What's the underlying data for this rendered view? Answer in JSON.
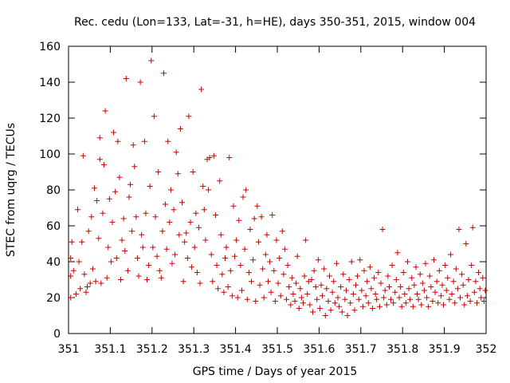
{
  "chart_data": {
    "type": "scatter",
    "title": "Rec. cedu (Lon=133, Lat=-31, h=HE), days 350-351, 2015, window 004",
    "xlabel": "GPS time / Days of year 2015",
    "ylabel": "STEC from uqrg / TECUs",
    "xlim": [
      351,
      352
    ],
    "ylim": [
      0,
      160
    ],
    "x_ticks": [
      "351",
      "351.1",
      "351.2",
      "351.3",
      "351.4",
      "351.5",
      "351.6",
      "351.7",
      "351.8",
      "351.9",
      "352"
    ],
    "y_ticks": [
      "0",
      "20",
      "40",
      "60",
      "80",
      "100",
      "120",
      "140",
      "160"
    ],
    "grid": false,
    "marker": "+",
    "marker_color": "#cc0000",
    "series": [
      {
        "points": [
          [
            351.005,
            20
          ],
          [
            351.005,
            32
          ],
          [
            351.005,
            42
          ],
          [
            351.008,
            51
          ],
          [
            351.012,
            35
          ],
          [
            351.018,
            22
          ],
          [
            351.022,
            69
          ],
          [
            351.025,
            40
          ],
          [
            351.028,
            25
          ],
          [
            351.032,
            51
          ],
          [
            351.035,
            99
          ],
          [
            351.038,
            33
          ],
          [
            351.042,
            23
          ],
          [
            351.045,
            26
          ],
          [
            351.048,
            57
          ],
          [
            351.052,
            28
          ],
          [
            351.055,
            65
          ],
          [
            351.058,
            36
          ],
          [
            351.062,
            81
          ],
          [
            351.065,
            29
          ],
          [
            351.068,
            74
          ],
          [
            351.072,
            53
          ],
          [
            351.075,
            109
          ],
          [
            351.075,
            97
          ],
          [
            351.078,
            28
          ],
          [
            351.082,
            67
          ],
          [
            351.085,
            94
          ],
          [
            351.088,
            124
          ],
          [
            351.092,
            31
          ],
          [
            351.095,
            48
          ],
          [
            351.098,
            75
          ],
          [
            351.102,
            40
          ],
          [
            351.105,
            62
          ],
          [
            351.108,
            112
          ],
          [
            351.112,
            79
          ],
          [
            351.115,
            42
          ],
          [
            351.118,
            107
          ],
          [
            351.122,
            87
          ],
          [
            351.125,
            30
          ],
          [
            351.128,
            52
          ],
          [
            351.132,
            64
          ],
          [
            351.135,
            46
          ],
          [
            351.138,
            142
          ],
          [
            351.142,
            35
          ],
          [
            351.145,
            76
          ],
          [
            351.148,
            83
          ],
          [
            351.152,
            57
          ],
          [
            351.155,
            105
          ],
          [
            351.158,
            93
          ],
          [
            351.162,
            65
          ],
          [
            351.165,
            42
          ],
          [
            351.168,
            32
          ],
          [
            351.172,
            140
          ],
          [
            351.175,
            55
          ],
          [
            351.178,
            48
          ],
          [
            351.182,
            107
          ],
          [
            351.185,
            67
          ],
          [
            351.188,
            30
          ],
          [
            351.192,
            38
          ],
          [
            351.195,
            82
          ],
          [
            351.198,
            152
          ],
          [
            351.202,
            48
          ],
          [
            351.205,
            121
          ],
          [
            351.208,
            65
          ],
          [
            351.212,
            43
          ],
          [
            351.215,
            90
          ],
          [
            351.218,
            35
          ],
          [
            351.222,
            31
          ],
          [
            351.225,
            57
          ],
          [
            351.228,
            145
          ],
          [
            351.232,
            72
          ],
          [
            351.235,
            47
          ],
          [
            351.238,
            107
          ],
          [
            351.242,
            62
          ],
          [
            351.245,
            80
          ],
          [
            351.248,
            39
          ],
          [
            351.252,
            69
          ],
          [
            351.255,
            44
          ],
          [
            351.258,
            101
          ],
          [
            351.262,
            89
          ],
          [
            351.265,
            55
          ],
          [
            351.268,
            114
          ],
          [
            351.272,
            73
          ],
          [
            351.275,
            29
          ],
          [
            351.278,
            51
          ],
          [
            351.282,
            56
          ],
          [
            351.285,
            42
          ],
          [
            351.288,
            121
          ],
          [
            351.292,
            62
          ],
          [
            351.295,
            37
          ],
          [
            351.298,
            90
          ],
          [
            351.302,
            48
          ],
          [
            351.305,
            67
          ],
          [
            351.308,
            34
          ],
          [
            351.312,
            59
          ],
          [
            351.315,
            28
          ],
          [
            351.318,
            136
          ],
          [
            351.322,
            82
          ],
          [
            351.325,
            69
          ],
          [
            351.328,
            52
          ],
          [
            351.332,
            97
          ],
          [
            351.335,
            80
          ],
          [
            351.338,
            98
          ],
          [
            351.342,
            44
          ],
          [
            351.345,
            29
          ],
          [
            351.348,
            99
          ],
          [
            351.352,
            66
          ],
          [
            351.355,
            38
          ],
          [
            351.358,
            25
          ],
          [
            351.362,
            85
          ],
          [
            351.365,
            55
          ],
          [
            351.368,
            33
          ],
          [
            351.372,
            23
          ],
          [
            351.375,
            42
          ],
          [
            351.378,
            48
          ],
          [
            351.382,
            26
          ],
          [
            351.385,
            98
          ],
          [
            351.388,
            35
          ],
          [
            351.392,
            21
          ],
          [
            351.395,
            71
          ],
          [
            351.398,
            43
          ],
          [
            351.402,
            52
          ],
          [
            351.405,
            20
          ],
          [
            351.408,
            63
          ],
          [
            351.412,
            38
          ],
          [
            351.415,
            24
          ],
          [
            351.418,
            76
          ],
          [
            351.422,
            47
          ],
          [
            351.425,
            80
          ],
          [
            351.428,
            19
          ],
          [
            351.432,
            34
          ],
          [
            351.435,
            58
          ],
          [
            351.438,
            29
          ],
          [
            351.442,
            41
          ],
          [
            351.445,
            64
          ],
          [
            351.448,
            18
          ],
          [
            351.452,
            71
          ],
          [
            351.455,
            51
          ],
          [
            351.458,
            27
          ],
          [
            351.462,
            65
          ],
          [
            351.465,
            36
          ],
          [
            351.468,
            20
          ],
          [
            351.472,
            44
          ],
          [
            351.475,
            55
          ],
          [
            351.478,
            29
          ],
          [
            351.482,
            40
          ],
          [
            351.485,
            23
          ],
          [
            351.488,
            66
          ],
          [
            351.492,
            35
          ],
          [
            351.495,
            18
          ],
          [
            351.498,
            52
          ],
          [
            351.502,
            28
          ],
          [
            351.505,
            42
          ],
          [
            351.508,
            21
          ],
          [
            351.512,
            57
          ],
          [
            351.515,
            33
          ],
          [
            351.518,
            47
          ],
          [
            351.522,
            19
          ],
          [
            351.525,
            38
          ],
          [
            351.528,
            26
          ],
          [
            351.532,
            16
          ],
          [
            351.535,
            31
          ],
          [
            351.538,
            22
          ],
          [
            351.542,
            18
          ],
          [
            351.545,
            28
          ],
          [
            351.548,
            43
          ],
          [
            351.552,
            14
          ],
          [
            351.555,
            25
          ],
          [
            351.558,
            20
          ],
          [
            351.562,
            17
          ],
          [
            351.565,
            32
          ],
          [
            351.568,
            52
          ],
          [
            351.572,
            22
          ],
          [
            351.575,
            29
          ],
          [
            351.578,
            16
          ],
          [
            351.582,
            30
          ],
          [
            351.585,
            12
          ],
          [
            351.588,
            35
          ],
          [
            351.592,
            26
          ],
          [
            351.595,
            19
          ],
          [
            351.598,
            41
          ],
          [
            351.602,
            14
          ],
          [
            351.605,
            27
          ],
          [
            351.608,
            21
          ],
          [
            351.612,
            36
          ],
          [
            351.615,
            10
          ],
          [
            351.618,
            25
          ],
          [
            351.622,
            18
          ],
          [
            351.625,
            32
          ],
          [
            351.628,
            13
          ],
          [
            351.632,
            23
          ],
          [
            351.635,
            29
          ],
          [
            351.638,
            17
          ],
          [
            351.642,
            39
          ],
          [
            351.645,
            20
          ],
          [
            351.648,
            15
          ],
          [
            351.652,
            26
          ],
          [
            351.655,
            12
          ],
          [
            351.658,
            33
          ],
          [
            351.662,
            19
          ],
          [
            351.665,
            24
          ],
          [
            351.668,
            10
          ],
          [
            351.672,
            30
          ],
          [
            351.675,
            17
          ],
          [
            351.678,
            40
          ],
          [
            351.682,
            22
          ],
          [
            351.685,
            13
          ],
          [
            351.688,
            27
          ],
          [
            351.692,
            32
          ],
          [
            351.695,
            19
          ],
          [
            351.698,
            41
          ],
          [
            351.702,
            24
          ],
          [
            351.705,
            15
          ],
          [
            351.708,
            35
          ],
          [
            351.712,
            21
          ],
          [
            351.715,
            29
          ],
          [
            351.718,
            17
          ],
          [
            351.722,
            37
          ],
          [
            351.725,
            25
          ],
          [
            351.728,
            14
          ],
          [
            351.732,
            31
          ],
          [
            351.735,
            22
          ],
          [
            351.738,
            19
          ],
          [
            351.742,
            34
          ],
          [
            351.745,
            15
          ],
          [
            351.748,
            28
          ],
          [
            351.752,
            58
          ],
          [
            351.755,
            20
          ],
          [
            351.758,
            24
          ],
          [
            351.762,
            16
          ],
          [
            351.765,
            32
          ],
          [
            351.768,
            26
          ],
          [
            351.772,
            19
          ],
          [
            351.775,
            38
          ],
          [
            351.778,
            17
          ],
          [
            351.782,
            23
          ],
          [
            351.785,
            30
          ],
          [
            351.788,
            45
          ],
          [
            351.792,
            20
          ],
          [
            351.795,
            26
          ],
          [
            351.798,
            15
          ],
          [
            351.802,
            34
          ],
          [
            351.805,
            22
          ],
          [
            351.808,
            17
          ],
          [
            351.812,
            40
          ],
          [
            351.815,
            25
          ],
          [
            351.818,
            19
          ],
          [
            351.822,
            31
          ],
          [
            351.825,
            15
          ],
          [
            351.828,
            27
          ],
          [
            351.832,
            37
          ],
          [
            351.835,
            22
          ],
          [
            351.838,
            19
          ],
          [
            351.842,
            33
          ],
          [
            351.845,
            16
          ],
          [
            351.848,
            28
          ],
          [
            351.852,
            24
          ],
          [
            351.855,
            39
          ],
          [
            351.858,
            20
          ],
          [
            351.862,
            15
          ],
          [
            351.865,
            32
          ],
          [
            351.868,
            26
          ],
          [
            351.872,
            18
          ],
          [
            351.875,
            41
          ],
          [
            351.878,
            23
          ],
          [
            351.882,
            29
          ],
          [
            351.885,
            17
          ],
          [
            351.888,
            35
          ],
          [
            351.892,
            21
          ],
          [
            351.895,
            27
          ],
          [
            351.898,
            16
          ],
          [
            351.902,
            38
          ],
          [
            351.905,
            24
          ],
          [
            351.908,
            31
          ],
          [
            351.912,
            19
          ],
          [
            351.915,
            44
          ],
          [
            351.918,
            22
          ],
          [
            351.922,
            29
          ],
          [
            351.925,
            17
          ],
          [
            351.928,
            36
          ],
          [
            351.932,
            25
          ],
          [
            351.935,
            58
          ],
          [
            351.938,
            20
          ],
          [
            351.942,
            33
          ],
          [
            351.945,
            27
          ],
          [
            351.948,
            16
          ],
          [
            351.952,
            50
          ],
          [
            351.955,
            21
          ],
          [
            351.958,
            30
          ],
          [
            351.962,
            18
          ],
          [
            351.965,
            38
          ],
          [
            351.968,
            59
          ],
          [
            351.972,
            23
          ],
          [
            351.975,
            29
          ],
          [
            351.978,
            17
          ],
          [
            351.982,
            34
          ],
          [
            351.985,
            25
          ],
          [
            351.988,
            20
          ],
          [
            351.992,
            31
          ],
          [
            351.995,
            18
          ],
          [
            351.998,
            24
          ]
        ]
      }
    ]
  }
}
